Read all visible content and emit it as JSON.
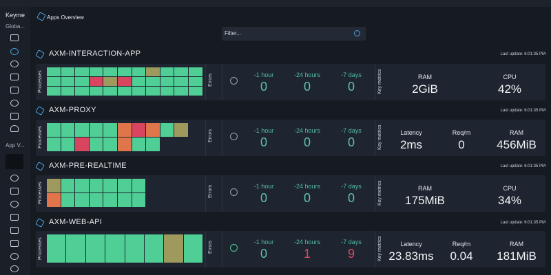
{
  "sidebar": {
    "workspace": "Keyme",
    "global": "Globa...",
    "app_view": "App V..."
  },
  "overview": {
    "title": "Apps Overview",
    "filter_placeholder": "Filter..."
  },
  "labels": {
    "processes": "Processes",
    "errors": "Errors",
    "key_metrics": "Key metrics"
  },
  "apps": [
    {
      "name": "AXM-INTERACTION-APP",
      "last_update": "Last update: 6:01:35 PM",
      "processes": [
        [
          "#4fce96",
          "#4fce96",
          "#4fce96",
          "#4fce96",
          "#4fce96",
          "#4fce96",
          "#4fce96",
          "#9e9a5e",
          "#4fce96",
          "#4fce96",
          "#4fce96"
        ],
        [
          "#4fce96",
          "#4fce96",
          "#4fce96",
          "#d9455f",
          "#9e9a5e",
          "#d9455f",
          "#4fce96",
          "#4fce96",
          "#4fce96",
          "#4fce96",
          "#4fce96"
        ],
        [
          "#4fce96",
          "#4fce96",
          "#4fce96",
          "#4fce96",
          "#4fce96",
          "#4fce96",
          "#4fce96",
          "#4fce96",
          "#4fce96",
          "#4fce96",
          "#4fce96"
        ]
      ],
      "errors": [
        {
          "label": "-1 hour",
          "value": 0
        },
        {
          "label": "-24 hours",
          "value": 0
        },
        {
          "label": "-7 days",
          "value": 0
        }
      ],
      "metrics": [
        {
          "label": "RAM",
          "value": "2GiB"
        },
        {
          "label": "CPU",
          "value": "42%"
        }
      ]
    },
    {
      "name": "AXM-PROXY",
      "last_update": "Last update: 6:01:35 PM",
      "processes": [
        [
          "#4fce96",
          "#4fce96",
          "#4fce96",
          "#4fce96",
          "#4fce96",
          "#e0744a",
          "#d9455f",
          "#e0744a",
          "#4fce96",
          "#9e9a5e"
        ],
        [
          "#4fce96",
          "#4fce96",
          "#d9455f",
          "#4fce96",
          "#4fce96",
          "#e0744a",
          "#4fce96",
          "#4fce96"
        ]
      ],
      "errors": [
        {
          "label": "-1 hour",
          "value": 0
        },
        {
          "label": "-24 hours",
          "value": 0
        },
        {
          "label": "-7 days",
          "value": 0
        }
      ],
      "metrics": [
        {
          "label": "Latency",
          "value": "2ms"
        },
        {
          "label": "Req/m",
          "value": "0"
        },
        {
          "label": "RAM",
          "value": "456MiB"
        }
      ]
    },
    {
      "name": "AXM-PRE-REALTIME",
      "last_update": "Last update: 6:01:35 PM",
      "processes": [
        [
          "#9e9a5e",
          "#4fce96",
          "#4fce96",
          "#4fce96",
          "#4fce96",
          "#4fce96",
          "#4fce96"
        ],
        [
          "#e0744a",
          "#4fce96",
          "#4fce96",
          "#4fce96",
          "#4fce96",
          "#4fce96",
          "#4fce96"
        ]
      ],
      "errors": [
        {
          "label": "-1 hour",
          "value": 0
        },
        {
          "label": "-24 hours",
          "value": 0
        },
        {
          "label": "-7 days",
          "value": 0
        }
      ],
      "metrics": [
        {
          "label": "RAM",
          "value": "175MiB"
        },
        {
          "label": "CPU",
          "value": "34%"
        }
      ]
    },
    {
      "name": "AXM-WEB-API",
      "last_update": "Last update: 6:01:35 PM",
      "processes": [
        [
          "#4fce96",
          "#4fce96",
          "#4fce96",
          "#4fce96",
          "#4fce96",
          "#4fce96",
          "#9e9a5e",
          "#4fce96"
        ]
      ],
      "errors": [
        {
          "label": "-1 hour",
          "value": 0
        },
        {
          "label": "-24 hours",
          "value": 1
        },
        {
          "label": "-7 days",
          "value": 9
        }
      ],
      "metrics": [
        {
          "label": "Latency",
          "value": "23.83ms"
        },
        {
          "label": "Req/m",
          "value": "0.04"
        },
        {
          "label": "RAM",
          "value": "181MiB"
        }
      ]
    }
  ]
}
